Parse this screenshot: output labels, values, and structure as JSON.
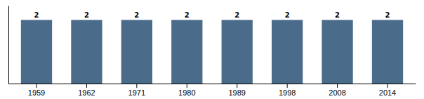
{
  "chart_data": {
    "type": "bar",
    "categories": [
      "1959",
      "1962",
      "1971",
      "1980",
      "1989",
      "1998",
      "2008",
      "2014"
    ],
    "values": [
      2,
      2,
      2,
      2,
      2,
      2,
      2,
      2
    ],
    "color": "#4A6B8A",
    "ylim": [
      0,
      2.45
    ],
    "data_labels": true,
    "tick_labels": "x"
  }
}
